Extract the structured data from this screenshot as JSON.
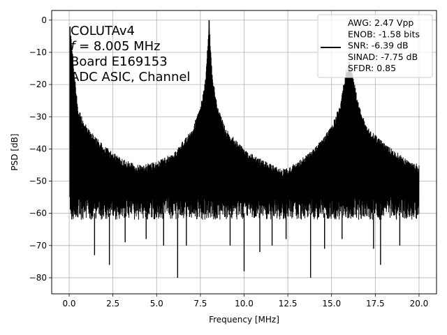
{
  "chart_data": {
    "type": "line",
    "xlabel": "Frequency [MHz]",
    "ylabel": "PSD [dB]",
    "xlim": [
      -1.0,
      21.0
    ],
    "ylim": [
      -85,
      3
    ],
    "xticks": [
      0.0,
      2.5,
      5.0,
      7.5,
      10.0,
      12.5,
      15.0,
      17.5,
      20.0
    ],
    "xtick_labels": [
      "0.0",
      "2.5",
      "5.0",
      "7.5",
      "10.0",
      "12.5",
      "15.0",
      "17.5",
      "20.0"
    ],
    "yticks": [
      0,
      -10,
      -20,
      -30,
      -40,
      -50,
      -60,
      -70,
      -80
    ],
    "ytick_labels": [
      "0",
      "−10",
      "−20",
      "−30",
      "−40",
      "−50",
      "−60",
      "−70",
      "−80"
    ],
    "grid": true,
    "annotations": [
      {
        "prefix": "COLUTAv4",
        "italic": "",
        "suffix": ""
      },
      {
        "prefix": "",
        "italic": "f",
        "suffix": " = 8.005 MHz"
      },
      {
        "prefix": "Board E169153",
        "italic": "",
        "suffix": ""
      },
      {
        "prefix": "ADC ASIC, Channel",
        "italic": "",
        "suffix": ""
      }
    ],
    "legend": {
      "placement": "top-right",
      "lines": [
        "AWG: 2.47 Vpp",
        "ENOB: -1.58 bits",
        "SNR: -6.39 dB",
        "SINAD: -7.75 dB",
        "SFDR: 0.85"
      ]
    },
    "series": [
      {
        "color": "#000000",
        "peaks": [
          {
            "x": 0.05,
            "y": -2
          },
          {
            "x": 8.0,
            "y": 0
          },
          {
            "x": 16.0,
            "y": -13
          }
        ],
        "upper_envelope": {
          "x": [
            0.05,
            0.5,
            1.0,
            2.0,
            3.0,
            4.0,
            5.0,
            6.0,
            7.0,
            7.5,
            7.8,
            8.0,
            8.2,
            8.5,
            9.0,
            10.0,
            11.0,
            12.0,
            12.5,
            13.0,
            14.0,
            15.0,
            15.5,
            15.8,
            16.0,
            16.2,
            16.5,
            17.0,
            18.0,
            19.0,
            20.0
          ],
          "y": [
            -2,
            -27,
            -33,
            -39,
            -43,
            -45,
            -44,
            -41,
            -34,
            -27,
            -18,
            0,
            -18,
            -27,
            -34,
            -40,
            -43,
            -46,
            -46,
            -44,
            -40,
            -33,
            -26,
            -16,
            -13,
            -16,
            -25,
            -33,
            -38,
            -42,
            -45
          ]
        },
        "lower_floor": [
          -55,
          -62
        ],
        "nulls": [
          {
            "x": 1.45,
            "y": -73
          },
          {
            "x": 2.3,
            "y": -76
          },
          {
            "x": 3.2,
            "y": -69
          },
          {
            "x": 4.4,
            "y": -68
          },
          {
            "x": 5.4,
            "y": -70
          },
          {
            "x": 6.2,
            "y": -80
          },
          {
            "x": 6.7,
            "y": -70
          },
          {
            "x": 9.2,
            "y": -70
          },
          {
            "x": 10.0,
            "y": -78
          },
          {
            "x": 10.9,
            "y": -72
          },
          {
            "x": 11.6,
            "y": -70
          },
          {
            "x": 12.4,
            "y": -68
          },
          {
            "x": 13.8,
            "y": -80
          },
          {
            "x": 14.6,
            "y": -71
          },
          {
            "x": 15.6,
            "y": -68
          },
          {
            "x": 17.4,
            "y": -71
          },
          {
            "x": 17.8,
            "y": -76
          },
          {
            "x": 18.9,
            "y": -70
          }
        ]
      }
    ]
  }
}
